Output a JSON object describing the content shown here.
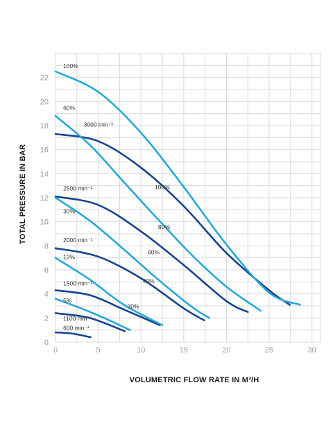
{
  "chart_data": {
    "type": "line",
    "title": "",
    "xlabel": "VOLUMETRIC FLOW RATE IN M³/H",
    "ylabel": "TOTAL PRESSURE IN BAR",
    "xlim": [
      0,
      31
    ],
    "ylim": [
      0,
      24
    ],
    "xticks": [
      "0",
      "5",
      "10",
      "15",
      "20",
      "25",
      "30"
    ],
    "yticks": [
      "0",
      "2",
      "4",
      "6",
      "8",
      "10",
      "12",
      "14",
      "16",
      "18",
      "20",
      "22"
    ],
    "grid": true,
    "colors": {
      "speed": "#16448f",
      "load": "#25a9d6",
      "grid": "#d9d9d9"
    },
    "series": [
      {
        "group": "speed",
        "x": [
          0,
          5,
          10,
          15,
          20,
          25,
          27.4
        ],
        "y": [
          17.3,
          16.7,
          14.5,
          11.3,
          7.4,
          4.3,
          3.1
        ]
      },
      {
        "group": "speed",
        "x": [
          0,
          5,
          10,
          15,
          20,
          22.5
        ],
        "y": [
          12.1,
          11.4,
          9.2,
          6.4,
          3.4,
          2.5
        ]
      },
      {
        "group": "speed",
        "x": [
          0,
          5,
          10,
          15,
          17.4
        ],
        "y": [
          7.8,
          7.1,
          5.3,
          2.8,
          1.8
        ]
      },
      {
        "group": "speed",
        "x": [
          0,
          4,
          8,
          12.2
        ],
        "y": [
          4.3,
          3.9,
          2.7,
          1.4
        ]
      },
      {
        "group": "speed",
        "x": [
          0,
          4,
          8.1
        ],
        "y": [
          2.4,
          2.0,
          0.9
        ]
      },
      {
        "group": "speed",
        "x": [
          0,
          2,
          4.1
        ],
        "y": [
          0.8,
          0.7,
          0.4
        ]
      },
      {
        "group": "load",
        "x": [
          0,
          5,
          10,
          15,
          20,
          25,
          28.6
        ],
        "y": [
          22.5,
          20.8,
          17.4,
          12.9,
          8.1,
          4.1,
          3.1
        ]
      },
      {
        "group": "load",
        "x": [
          0,
          4,
          8,
          12,
          16,
          20,
          24
        ],
        "y": [
          18.8,
          16.4,
          13.3,
          10.2,
          7.2,
          4.6,
          2.6
        ]
      },
      {
        "group": "load",
        "x": [
          0,
          4,
          8,
          12,
          16,
          18
        ],
        "y": [
          12.0,
          10.1,
          7.7,
          5.2,
          2.9,
          2.0
        ]
      },
      {
        "group": "load",
        "x": [
          0,
          4,
          8,
          12.5
        ],
        "y": [
          7.0,
          5.2,
          3.1,
          1.4
        ]
      },
      {
        "group": "load",
        "x": [
          0,
          3,
          6,
          8.7
        ],
        "y": [
          3.6,
          2.8,
          1.9,
          1.0
        ]
      }
    ],
    "annotations": [
      {
        "text": "100%",
        "x": 0.9,
        "y": 22.8
      },
      {
        "text": "60%",
        "x": 0.9,
        "y": 19.3
      },
      {
        "text": "3000 min⁻¹",
        "x": 3.3,
        "y": 17.9
      },
      {
        "text": "100%",
        "x": 11.6,
        "y": 12.7
      },
      {
        "text": "2500 min⁻¹",
        "x": 0.9,
        "y": 12.6
      },
      {
        "text": "30%",
        "x": 0.9,
        "y": 10.7
      },
      {
        "text": "80%",
        "x": 12.0,
        "y": 9.4
      },
      {
        "text": "2000 min⁻¹",
        "x": 0.9,
        "y": 8.3
      },
      {
        "text": "60%",
        "x": 10.8,
        "y": 7.3
      },
      {
        "text": "12%",
        "x": 0.9,
        "y": 6.9
      },
      {
        "text": "40%",
        "x": 10.2,
        "y": 4.9
      },
      {
        "text": "1500 min⁻¹",
        "x": 0.9,
        "y": 4.7
      },
      {
        "text": "5%",
        "x": 0.9,
        "y": 3.3
      },
      {
        "text": "20%",
        "x": 8.4,
        "y": 2.8
      },
      {
        "text": "1100 min⁻¹",
        "x": 0.9,
        "y": 1.8
      },
      {
        "text": "600 min⁻¹",
        "x": 0.9,
        "y": 1.0
      }
    ]
  }
}
